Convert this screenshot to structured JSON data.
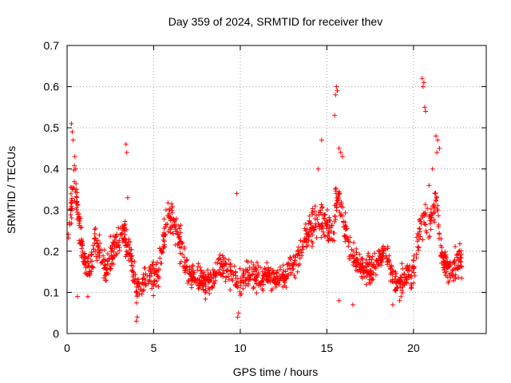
{
  "chart_data": {
    "type": "scatter",
    "title": "Day 359 of 2024, SRMTID for receiver thev",
    "xlabel": "GPS time / hours",
    "ylabel": "SRMTID / TECUs",
    "xlim": [
      0,
      24.2
    ],
    "ylim": [
      0,
      0.7
    ],
    "xticks": [
      0,
      5,
      10,
      15,
      20
    ],
    "yticks": [
      0,
      0.1,
      0.2,
      0.3,
      0.4,
      0.5,
      0.6,
      0.7
    ],
    "grid": true,
    "marker": "plus",
    "color": "#ff0000",
    "series": [
      {
        "name": "SRMTID",
        "envelope": [
          [
            0.0,
            0.22
          ],
          [
            0.2,
            0.3
          ],
          [
            0.4,
            0.38
          ],
          [
            0.6,
            0.3
          ],
          [
            0.8,
            0.24
          ],
          [
            1.0,
            0.17
          ],
          [
            1.3,
            0.16
          ],
          [
            1.6,
            0.22
          ],
          [
            1.9,
            0.2
          ],
          [
            2.2,
            0.16
          ],
          [
            2.6,
            0.2
          ],
          [
            3.0,
            0.22
          ],
          [
            3.3,
            0.24
          ],
          [
            3.6,
            0.2
          ],
          [
            4.0,
            0.11
          ],
          [
            4.3,
            0.12
          ],
          [
            4.7,
            0.14
          ],
          [
            5.0,
            0.14
          ],
          [
            5.3,
            0.16
          ],
          [
            5.6,
            0.24
          ],
          [
            5.9,
            0.29
          ],
          [
            6.2,
            0.27
          ],
          [
            6.5,
            0.22
          ],
          [
            6.8,
            0.17
          ],
          [
            7.2,
            0.14
          ],
          [
            7.6,
            0.13
          ],
          [
            8.0,
            0.12
          ],
          [
            8.5,
            0.14
          ],
          [
            9.0,
            0.17
          ],
          [
            9.5,
            0.15
          ],
          [
            10.0,
            0.12
          ],
          [
            10.5,
            0.15
          ],
          [
            11.0,
            0.13
          ],
          [
            11.5,
            0.14
          ],
          [
            12.0,
            0.13
          ],
          [
            12.5,
            0.14
          ],
          [
            13.0,
            0.16
          ],
          [
            13.5,
            0.2
          ],
          [
            14.0,
            0.25
          ],
          [
            14.5,
            0.28
          ],
          [
            15.0,
            0.27
          ],
          [
            15.3,
            0.24
          ],
          [
            15.6,
            0.33
          ],
          [
            15.9,
            0.3
          ],
          [
            16.2,
            0.22
          ],
          [
            16.6,
            0.17
          ],
          [
            17.0,
            0.16
          ],
          [
            17.5,
            0.15
          ],
          [
            18.0,
            0.18
          ],
          [
            18.4,
            0.2
          ],
          [
            18.8,
            0.13
          ],
          [
            19.2,
            0.12
          ],
          [
            19.6,
            0.14
          ],
          [
            20.0,
            0.15
          ],
          [
            20.4,
            0.26
          ],
          [
            20.7,
            0.28
          ],
          [
            21.0,
            0.27
          ],
          [
            21.3,
            0.33
          ],
          [
            21.6,
            0.2
          ],
          [
            22.0,
            0.15
          ],
          [
            22.4,
            0.16
          ],
          [
            22.8,
            0.18
          ]
        ],
        "spikes": [
          [
            0.25,
            0.51
          ],
          [
            0.3,
            0.49
          ],
          [
            0.35,
            0.47
          ],
          [
            0.45,
            0.43
          ],
          [
            0.5,
            0.4
          ],
          [
            3.4,
            0.46
          ],
          [
            3.45,
            0.44
          ],
          [
            3.5,
            0.33
          ],
          [
            9.8,
            0.34
          ],
          [
            14.7,
            0.47
          ],
          [
            14.5,
            0.4
          ],
          [
            15.55,
            0.6
          ],
          [
            15.6,
            0.59
          ],
          [
            15.5,
            0.58
          ],
          [
            15.45,
            0.53
          ],
          [
            15.7,
            0.45
          ],
          [
            15.8,
            0.44
          ],
          [
            15.9,
            0.43
          ],
          [
            20.5,
            0.62
          ],
          [
            20.6,
            0.61
          ],
          [
            20.55,
            0.6
          ],
          [
            20.65,
            0.55
          ],
          [
            20.7,
            0.54
          ],
          [
            21.3,
            0.48
          ],
          [
            21.4,
            0.47
          ],
          [
            21.5,
            0.45
          ],
          [
            21.35,
            0.44
          ],
          [
            21.1,
            0.4
          ],
          [
            20.9,
            0.36
          ],
          [
            4.0,
            0.03
          ],
          [
            4.05,
            0.04
          ],
          [
            9.85,
            0.04
          ],
          [
            9.9,
            0.05
          ],
          [
            18.8,
            0.07
          ],
          [
            19.2,
            0.08
          ],
          [
            16.5,
            0.07
          ],
          [
            15.7,
            0.08
          ],
          [
            0.6,
            0.09
          ],
          [
            1.2,
            0.09
          ]
        ]
      }
    ]
  }
}
